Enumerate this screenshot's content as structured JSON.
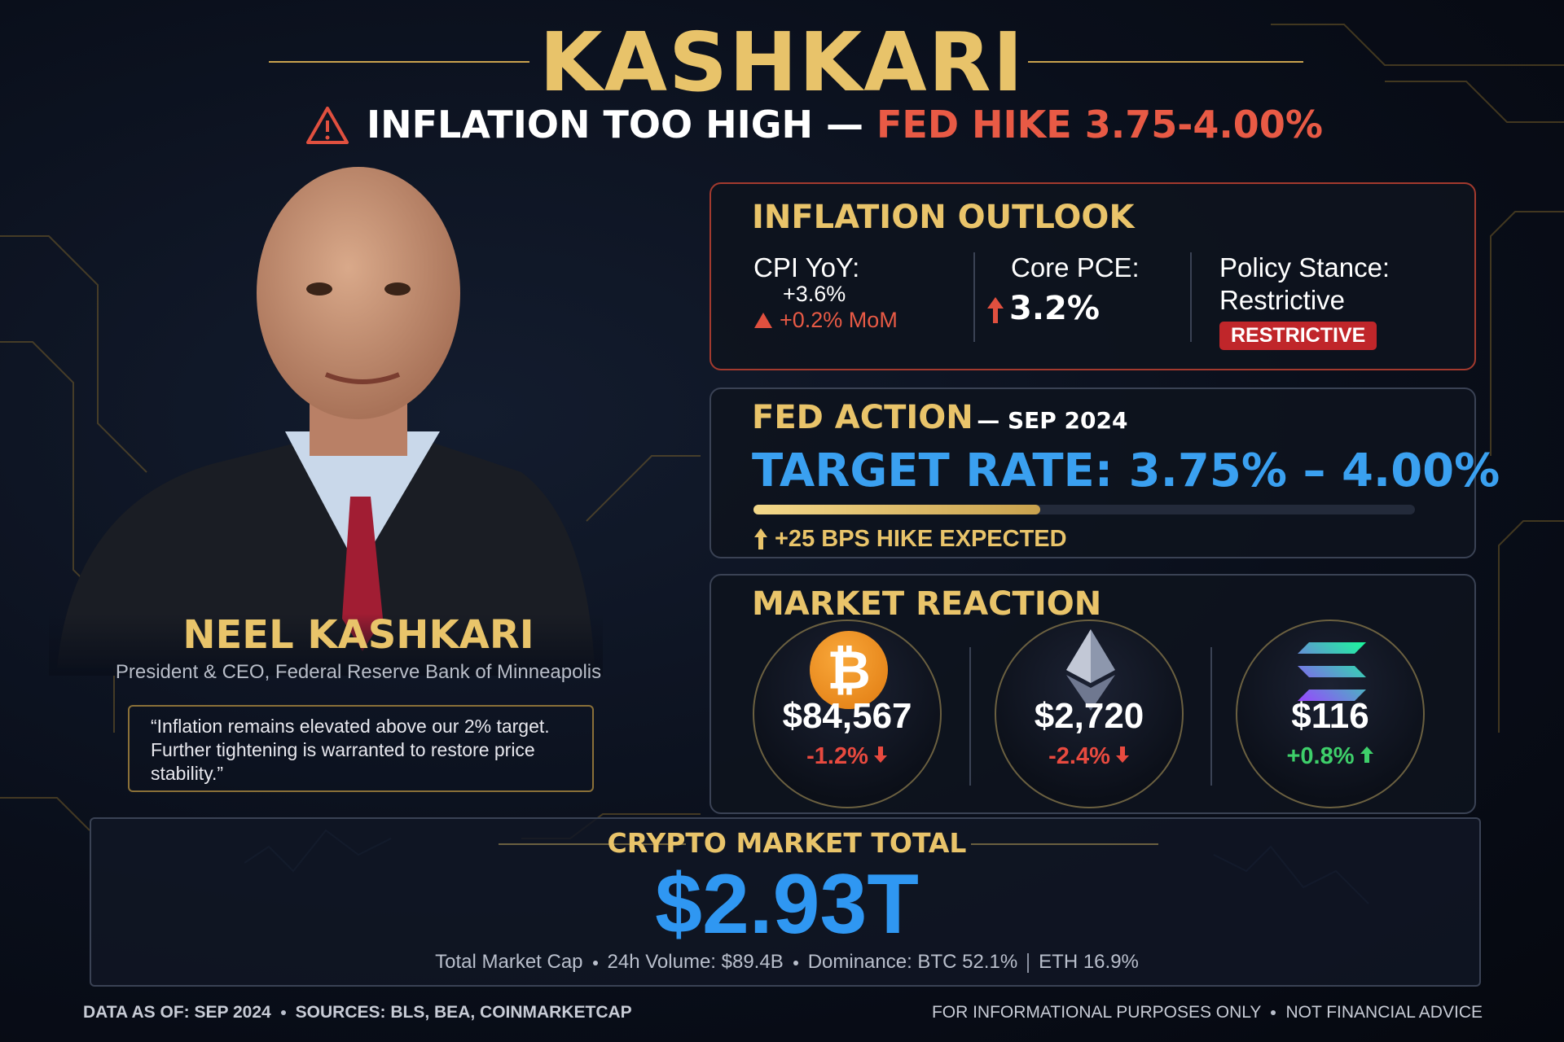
{
  "header": {
    "title": "KASHKARI",
    "subtitle": "INFLATION TOO HIGH —",
    "subtitle_highlight": "FED HIKE 3.75-4.00%"
  },
  "person": {
    "name": "NEEL KASHKARI",
    "role": "President & CEO, Federal Reserve Bank of Minneapolis",
    "quote": "“Inflation remains elevated above our 2% target. Further tightening is warranted to restore price stability.”"
  },
  "inflation": {
    "title": "INFLATION OUTLOOK",
    "cpi": {
      "label": "CPI YoY:",
      "value": "+3.6%",
      "change": "+0.2% MoM"
    },
    "pce": {
      "label": "Core PCE:",
      "value": "3.2%"
    },
    "stance": {
      "label": "Policy Stance:",
      "value": "Restrictive",
      "badge": "RESTRICTIVE"
    }
  },
  "fed": {
    "title": "FED ACTION",
    "date": "— SEP 2024",
    "rate": "TARGET RATE: 3.75% – 4.00%",
    "note": "+25 BPS HIKE EXPECTED"
  },
  "market": {
    "title": "MARKET REACTION",
    "coins": [
      {
        "symbol": "₿",
        "price": "$84,567",
        "change": "-1.2%"
      },
      {
        "price": "$2,720",
        "change": "-2.4%"
      },
      {
        "price": "$116",
        "change": "+0.8%"
      }
    ]
  },
  "total": {
    "title": "CRYPTO MARKET TOTAL",
    "value": "$2.93T",
    "details": [
      "Total Market Cap",
      "24h Volume: $89.4B",
      "Dominance: BTC 52.1%",
      "ETH 16.9%"
    ]
  },
  "footer": {
    "left": [
      "DATA AS OF: SEP 2024",
      "SOURCES: BLS, BEA, COINMARKETCAP"
    ],
    "right": [
      "FOR INFORMATIONAL PURPOSES ONLY",
      "NOT FINANCIAL ADVICE"
    ]
  }
}
